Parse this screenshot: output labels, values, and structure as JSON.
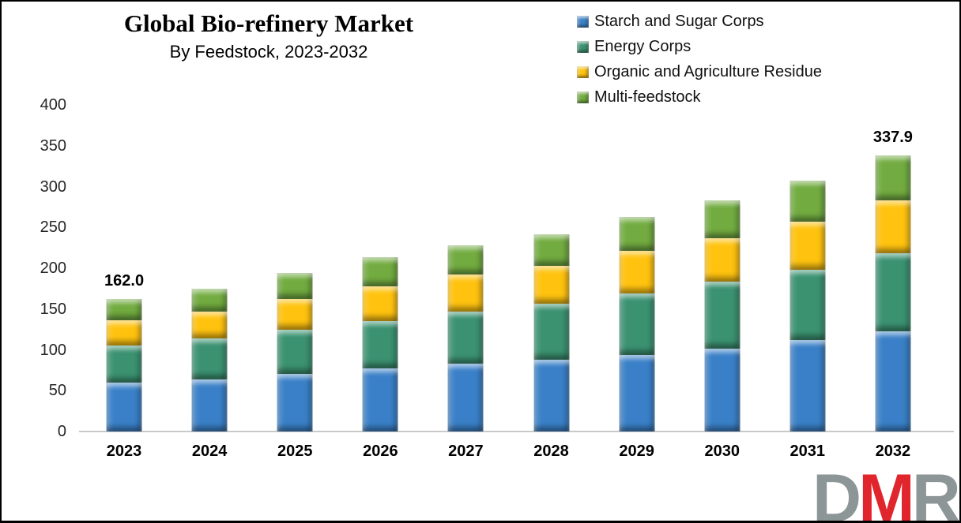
{
  "header": {
    "title": "Global Bio-refinery Market",
    "subtitle": "By Feedstock, 2023-2032"
  },
  "chart_data": {
    "type": "bar",
    "stacked": true,
    "title": "Global Bio-refinery Market",
    "subtitle": "By Feedstock, 2023-2032",
    "categories": [
      "2023",
      "2024",
      "2025",
      "2026",
      "2027",
      "2028",
      "2029",
      "2030",
      "2031",
      "2032"
    ],
    "series": [
      {
        "name": "Starch and Sugar Corps",
        "color": "#3A80C8",
        "values": [
          59.5,
          64.0,
          71.0,
          77.5,
          83.0,
          87.5,
          93.5,
          101.5,
          112.0,
          122.9
        ]
      },
      {
        "name": "Energy Corps",
        "color": "#3B9271",
        "values": [
          45.5,
          50.0,
          54.0,
          57.5,
          64.0,
          69.0,
          76.0,
          82.0,
          86.0,
          95.5
        ]
      },
      {
        "name": "Organic and Agriculture Residue",
        "color": "#FFC30F",
        "values": [
          31.5,
          32.5,
          37.0,
          43.0,
          45.0,
          46.0,
          52.0,
          53.5,
          59.0,
          64.5
        ]
      },
      {
        "name": "Multi-feedstock",
        "color": "#72AC40",
        "values": [
          25.5,
          28.5,
          32.0,
          35.5,
          36.0,
          39.0,
          41.0,
          46.0,
          50.0,
          55.0
        ]
      }
    ],
    "totals": [
      162.0,
      175.0,
      194.0,
      213.5,
      228.0,
      241.5,
      262.5,
      283.0,
      307.0,
      337.9
    ],
    "annotations": {
      "2023": "162.0",
      "2032": "337.9"
    },
    "ylim": [
      0,
      400
    ],
    "yticks": [
      0,
      50,
      100,
      150,
      200,
      250,
      300,
      350,
      400
    ],
    "grid": false,
    "legend_position": "top-right",
    "axis_line_color": "#C9C9C9"
  },
  "logo": {
    "letters": [
      {
        "char": "D",
        "color": "#8D9697"
      },
      {
        "char": "M",
        "color": "#E0262C"
      },
      {
        "char": "R",
        "color": "#8D9697"
      }
    ]
  }
}
